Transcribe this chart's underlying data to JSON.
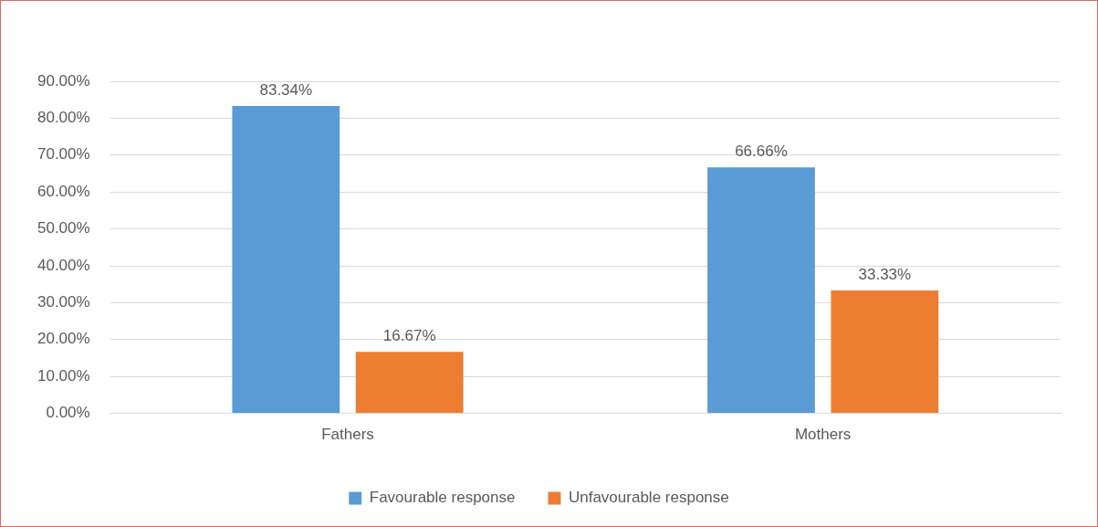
{
  "chart_data": {
    "type": "bar",
    "categories": [
      "Fathers",
      "Mothers"
    ],
    "series": [
      {
        "name": "Favourable response",
        "color": "#5b9bd5",
        "values": [
          83.34,
          66.66
        ],
        "value_labels": [
          "83.34%",
          "66.66%"
        ]
      },
      {
        "name": "Unfavourable response",
        "color": "#ed7d31",
        "values": [
          16.67,
          33.33
        ],
        "value_labels": [
          "16.67%",
          "33.33%"
        ]
      }
    ],
    "ylim": [
      0,
      90
    ],
    "yticks": [
      {
        "value": 0,
        "label": "0.00%"
      },
      {
        "value": 10,
        "label": "10.00%"
      },
      {
        "value": 20,
        "label": "20.00%"
      },
      {
        "value": 30,
        "label": "30.00%"
      },
      {
        "value": 40,
        "label": "40.00%"
      },
      {
        "value": 50,
        "label": "50.00%"
      },
      {
        "value": 60,
        "label": "60.00%"
      },
      {
        "value": 70,
        "label": "70.00%"
      },
      {
        "value": 80,
        "label": "80.00%"
      },
      {
        "value": 90,
        "label": "90.00%"
      }
    ],
    "grid": "y",
    "legend": "bottom"
  }
}
